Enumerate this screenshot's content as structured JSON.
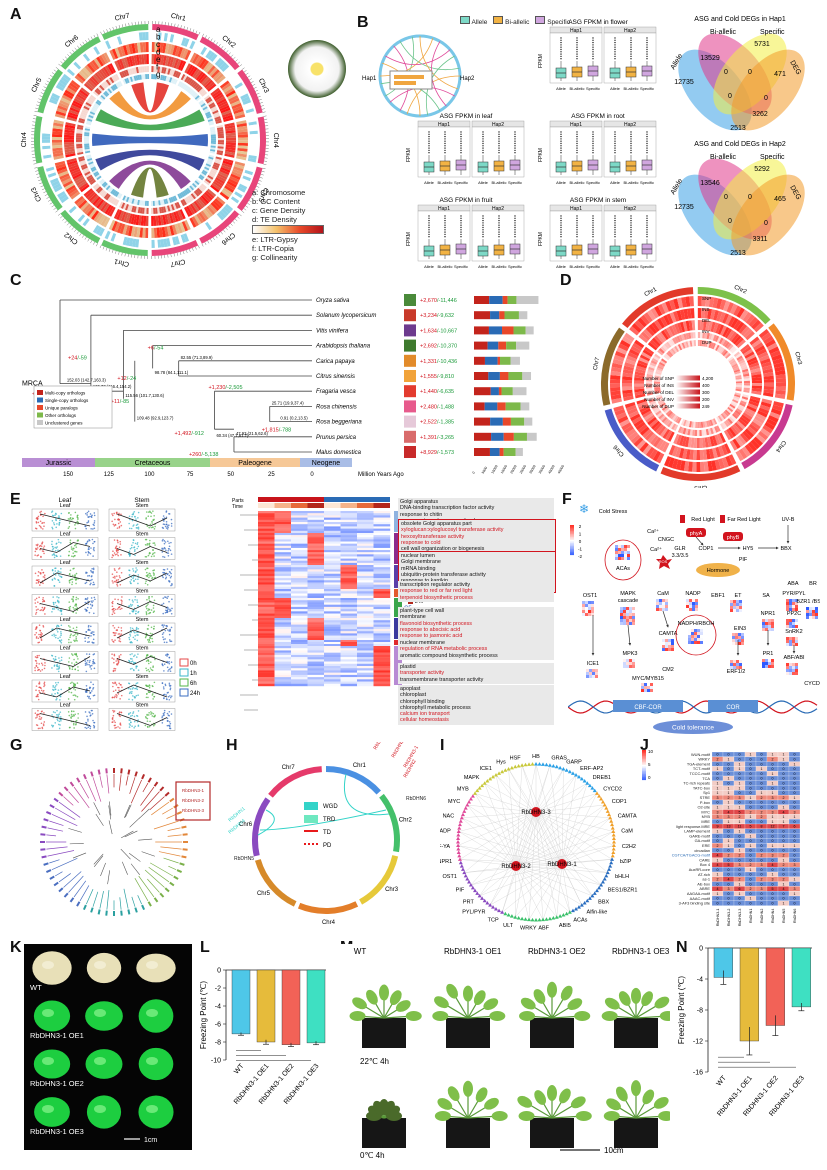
{
  "panels": {
    "A": "A",
    "B": "B",
    "C": "C",
    "D": "D",
    "E": "E",
    "F": "F",
    "G": "G",
    "H": "H",
    "I": "I",
    "J": "J",
    "K": "K",
    "L": "L",
    "M": "M",
    "N": "N"
  },
  "panelA": {
    "chromosomes": [
      "Chr1",
      "Chr2",
      "Chr3",
      "Chr4",
      "Chr5",
      "Chr6",
      "Chr7",
      "Chr1",
      "Chr2",
      "Chr3",
      "Chr4",
      "Chr5",
      "Chr6",
      "Chr7"
    ],
    "track_letters": [
      "a",
      "b",
      "c",
      "d",
      "e",
      "f",
      "g"
    ],
    "legend": [
      "a: Chromosome",
      "b: GC Content",
      "c: Gene Density",
      "d: TE Density",
      "e: LTR-Gypsy",
      "f: LTR-Copia",
      "g: Collinearity"
    ]
  },
  "panelB": {
    "legend": [
      "Allele",
      "Bi-allelic",
      "Specific"
    ],
    "hap_labels": [
      "Hap1",
      "Hap2"
    ],
    "plot_titles": [
      "ASG FPKM in flower",
      "ASG FPKM in leaf",
      "ASG FPKM in root",
      "ASG FPKM in fruit",
      "ASG FPKM in stem"
    ],
    "ylabel": "FPKM",
    "x_categories": [
      "Allele",
      "Bi-allelic",
      "Specific"
    ],
    "venn1": {
      "title": "ASG and Cold DEGs in Hap1",
      "sets": [
        "Allele",
        "Bi-allelic",
        "Specific",
        "DEG"
      ],
      "values": [
        "12735",
        "13529",
        "5731",
        "471",
        "0",
        "0",
        "0",
        "0",
        "3262",
        "2513"
      ]
    },
    "venn2": {
      "title": "ASG and Cold DEGs in Hap2",
      "sets": [
        "Allele",
        "Bi-allelic",
        "Specific",
        "DEG"
      ],
      "values": [
        "12735",
        "13546",
        "5292",
        "465",
        "0",
        "0",
        "0",
        "0",
        "3311",
        "2513"
      ]
    }
  },
  "panelC": {
    "root": "MRCA",
    "species": [
      {
        "name": "Oryza sativa",
        "gain": "+2,670",
        "loss": "/-11,446"
      },
      {
        "name": "Solanum lycopersicum",
        "gain": "+3,234",
        "loss": "/-9,632"
      },
      {
        "name": "Vitis vinifera",
        "gain": "+1,634",
        "loss": "/-10,667"
      },
      {
        "name": "Arabidopsis thaliana",
        "gain": "+2,692",
        "loss": "/-10,370"
      },
      {
        "name": "Carica papaya",
        "gain": "+1,331",
        "loss": "/-10,436"
      },
      {
        "name": "Citrus sinensis",
        "gain": "+1,555",
        "loss": "/-9,810"
      },
      {
        "name": "Fragaria vesca",
        "gain": "+1,440",
        "loss": "/-6,635"
      },
      {
        "name": "Rosa chinensis",
        "gain": "+2,480",
        "loss": "/-1,488"
      },
      {
        "name": "Rosa beggeriana",
        "gain": "+2,522",
        "loss": "/-1,385"
      },
      {
        "name": "Prunus persica",
        "gain": "+1,391",
        "loss": "/-3,265"
      },
      {
        "name": "Malus domestica",
        "gain": "+8,929",
        "loss": "/-1,573"
      }
    ],
    "node_times": [
      "152.03 (142.7,163.3)",
      "136.73 (116.4,154.2)",
      "82.55 (71.3,89.9)",
      "115.56 (101.7,130.6)",
      "98.78 (84.1,111.1)",
      "109.48 (92.9,123.7)",
      "25.71 (19.9,37.4)",
      "0.91 (0.2,13.5)",
      "60.34 (47.7,81.7)",
      "47.93 (21.5,62.6)"
    ],
    "node_changes": [
      "+155/-1,146",
      "+24/-59",
      "+6/-54",
      "+12/-24",
      "+11/-85",
      "+1,230/-2,505",
      "+1,815/-788",
      "+1,492/-912",
      "+260/-5,138"
    ],
    "legend": [
      "Multi-copy orthologs",
      "Single-copy orthologs",
      "Unique paralogs",
      "Other orthologs",
      "Unclustered genes"
    ],
    "legend_colors": [
      "#c3241c",
      "#2a6bb5",
      "#e8482a",
      "#7db94a",
      "#c8c8c8"
    ],
    "eras": [
      "Jurassic",
      "Cretaceous",
      "Paleogene",
      "Neogene"
    ],
    "era_colors": [
      "#b98fd4",
      "#98d38a",
      "#f6c897",
      "#a9bde6"
    ],
    "ticks": [
      "150",
      "125",
      "100",
      "75",
      "50",
      "25",
      "0"
    ],
    "xlabel": "Million Years Ago",
    "bar_ticks": [
      "0",
      "5000",
      "10000",
      "15000",
      "20000",
      "25000",
      "30000",
      "35000",
      "40000",
      "45000"
    ]
  },
  "panelD": {
    "chromosomes": [
      "Chr1",
      "Chr2",
      "Chr3",
      "Chr4",
      "Chr5",
      "Chr6",
      "Chr7"
    ],
    "tracks": [
      "SNP",
      "INS",
      "DEL",
      "INV",
      "DUP"
    ],
    "legend": [
      {
        "label": "Number of SNP",
        "value": "4,200"
      },
      {
        "label": "Number of INS",
        "value": "400"
      },
      {
        "label": "Number of DEL",
        "value": "300"
      },
      {
        "label": "Number of INV",
        "value": "200"
      },
      {
        "label": "Number of DUP",
        "value": "249"
      }
    ]
  },
  "panelE": {
    "facet_headers": [
      "Leaf",
      "Stem"
    ],
    "time_legend": [
      "0h",
      "1h",
      "6h",
      "24h"
    ],
    "heat_legend_title_parts": "Parts",
    "heat_legend_parts": [
      "Leaf",
      "Stem"
    ],
    "heat_legend_time": "Time",
    "heat_legend_times": [
      "0h",
      "1h",
      "6h",
      "24h"
    ],
    "scale_ticks": [
      "2",
      "1",
      "0",
      "-1",
      "-2"
    ],
    "row_headers": [
      "Parts",
      "Time"
    ],
    "clusters": [
      "C1",
      "C2",
      "C3",
      "C4",
      "C5",
      "C6",
      "C7",
      "C8"
    ],
    "cluster_colors": [
      "#8fb3e0",
      "#8b2b8c",
      "#5a3ea8",
      "#e25b2e",
      "#3aa64b",
      "#3a3a9e",
      "#e0292c",
      "#b88ad4"
    ],
    "go_terms": [
      {
        "t": "Golgi apparatus",
        "red": false
      },
      {
        "t": "DNA-binding transcription factor activity",
        "red": false
      },
      {
        "t": "response to chitin",
        "red": false
      },
      {
        "t": "response to endogenous stimulus",
        "red": false
      },
      {
        "t": "obsolete Golgi apparatus part",
        "red": false
      },
      {
        "t": "xyloglucan:xyloglucosyl transferase activity",
        "red": true
      },
      {
        "t": "hexosyltransferase activity",
        "red": true
      },
      {
        "t": "response to cold",
        "red": true
      },
      {
        "t": "cell wall organization or biogenesis",
        "red": false
      },
      {
        "t": "nuclear lumen",
        "red": false
      },
      {
        "t": "Golgi membrane",
        "red": false
      },
      {
        "t": "mRNA binding",
        "red": false
      },
      {
        "t": "ubiquitin-protein transferase activity",
        "red": false
      },
      {
        "t": "response to karrikin",
        "red": false
      },
      {
        "t": "regulation of response to stimulus",
        "red": true
      },
      {
        "t": "transcription regulator activity",
        "red": false
      },
      {
        "t": "response to red or far red light",
        "red": true
      },
      {
        "t": "terpenoid biosynthetic process",
        "red": true
      },
      {
        "t": "plant-type cell wall",
        "red": false
      },
      {
        "t": "membrane",
        "red": false
      },
      {
        "t": "flavonoid biosynthetic process",
        "red": true
      },
      {
        "t": "response to abscisic acid",
        "red": true
      },
      {
        "t": "response to jasmonic acid",
        "red": true
      },
      {
        "t": "nuclear membrane",
        "red": false
      },
      {
        "t": "regulation of RNA metabolic process",
        "red": true
      },
      {
        "t": "aromatic compound biosynthetic process",
        "red": false
      },
      {
        "t": "plastid",
        "red": false
      },
      {
        "t": "transporter activity",
        "red": true
      },
      {
        "t": "transmembrane transporter activity",
        "red": false
      },
      {
        "t": "apoplast",
        "red": false
      },
      {
        "t": "chloroplast",
        "red": false
      },
      {
        "t": "chlorophyll binding",
        "red": false
      },
      {
        "t": "chlorophyll metabolic process",
        "red": false
      },
      {
        "t": "calcium ion transport",
        "red": true
      },
      {
        "t": "cellular homeostasis",
        "red": true
      }
    ]
  },
  "panelF": {
    "nodes": {
      "cold": "Cold Stress",
      "ca1": "Ca²⁺",
      "ca2": "Ca²⁺",
      "cngc": "CNGC",
      "glr": "GLR 3.3/3.5",
      "acas": "ACAs",
      "ros": "ROS",
      "ost1": "OST1",
      "mapk": "MAPK cascade",
      "cam": "CaM",
      "nadp": "NADP",
      "nadph": "NADPH/RBOH",
      "camta": "CAMTA",
      "mpk3": "MPK3",
      "ice1": "ICE1",
      "myc": "MYC/MYB15",
      "cm2": "CM2",
      "red": "Red Light",
      "farred": "Far Red Light",
      "uvb": "UV-B",
      "phya": "phyA",
      "phyb": "phyB",
      "cop1": "COP1",
      "hy5": "HY5",
      "bbx": "BBX",
      "pif": "PIF",
      "hormone": "Hormone",
      "et": "ET",
      "sa": "SA",
      "aba": "ABA",
      "br": "BR",
      "ebf1": "EBF1",
      "ein3": "EIN3",
      "npr1": "NPR1",
      "pyr": "PYR/PYL",
      "pp2c": "PP2C",
      "snrk2": "SnRK2",
      "bzr1": "BZR1 /BSE1",
      "erf12": "ERF1/2",
      "pr1": "PR1",
      "abf": "ABF/ABI",
      "cycd": "CYCD",
      "cbf": "CBF-COR",
      "cor": "COR",
      "tol": "Cold tolerance"
    },
    "scale_ticks": [
      "2",
      "1",
      "0",
      "-1",
      "-2"
    ]
  },
  "panelG": {
    "highlight": [
      "RbDHN3-1",
      "RbDHN3-2",
      "RbDHN3-3"
    ]
  },
  "panelH": {
    "chromosomes": [
      "Chr1",
      "Chr2",
      "Chr3",
      "Chr4",
      "Chr5",
      "Chr6",
      "Chr7"
    ],
    "genes": [
      "RbDHN3-3",
      "RbDHN3-2",
      "RbDHN3-1",
      "RbDHN2",
      "RbDHN1",
      "RbDHN4",
      "RbDHN5",
      "RbDHN6"
    ],
    "legend": [
      "WGD",
      "TRD",
      "TD",
      "PD"
    ],
    "legend_colors": [
      "#33d3c8",
      "#6ee8c0",
      "#e8191b",
      "#e8191b"
    ]
  },
  "panelI": {
    "hubs": [
      "RbDHN3-3",
      "RbDHN3-2",
      "RbDHN3-1"
    ],
    "partners": [
      "HB",
      "GRAS",
      "GARP",
      "ERF-AP2",
      "DREB1",
      "CYCD2",
      "COP1",
      "CAMTA",
      "CaM",
      "C2H2",
      "bZIP",
      "bHLH",
      "BES1/BZR1",
      "BBX",
      "Alfin-like",
      "ACAs",
      "ABI5",
      "ABF",
      "WRKY",
      "ULT",
      "TCP",
      "PYL/PYR",
      "PRT",
      "PIF",
      "OST1",
      "NPR1",
      "NF-YA",
      "NADP",
      "NAC",
      "MYC",
      "MYB",
      "MAPK",
      "ICE1",
      "Hys",
      "HSF"
    ]
  },
  "panelJ": {
    "rows": [
      "WUN-motif",
      "WRKY",
      "TGA-element",
      "TCT-motif",
      "TCCC-motif",
      "TCA",
      "TC-rich repeats",
      "TATC-box",
      "Sp1",
      "STRE",
      "P-box",
      "O2-site",
      "MYC",
      "MYB",
      "MRE",
      "light response.MRE",
      "LAMP-element",
      "GARE-motif",
      "GA-motif",
      "ERE",
      "circadian",
      "CGTCA/TGACG-motif",
      "CARE",
      "Box 4",
      "AuxRR-core",
      "AT-rich",
      "as-1",
      "AE-box",
      "ABRE",
      "AAGAA-motif",
      "AAAC-motif",
      "3-AF3 binding site"
    ],
    "cols": [
      "RbDHN3-1",
      "RbDHN3-2",
      "RbDHN3-3",
      "RbDHN1",
      "RbDHN2",
      "RbDHN4",
      "RbDHN5",
      "RbDHN6"
    ],
    "values": [
      [
        0,
        0,
        0,
        1,
        0,
        1,
        1,
        0
      ],
      [
        2,
        1,
        0,
        0,
        0,
        2,
        1,
        0
      ],
      [
        0,
        0,
        1,
        0,
        0,
        0,
        0,
        1
      ],
      [
        1,
        0,
        1,
        0,
        1,
        0,
        0,
        0
      ],
      [
        0,
        0,
        0,
        0,
        0,
        1,
        0,
        0
      ],
      [
        0,
        1,
        0,
        0,
        0,
        0,
        0,
        0
      ],
      [
        1,
        0,
        1,
        0,
        0,
        1,
        0,
        0
      ],
      [
        1,
        1,
        1,
        0,
        0,
        0,
        0,
        0
      ],
      [
        1,
        1,
        0,
        0,
        1,
        1,
        0,
        0
      ],
      [
        3,
        2,
        3,
        1,
        2,
        3,
        2,
        1
      ],
      [
        0,
        1,
        0,
        0,
        0,
        0,
        0,
        0
      ],
      [
        1,
        1,
        1,
        0,
        0,
        0,
        1,
        0
      ],
      [
        3,
        4,
        5,
        2,
        2,
        3,
        4,
        3
      ],
      [
        3,
        3,
        2,
        1,
        2,
        1,
        1,
        1
      ],
      [
        0,
        1,
        1,
        0,
        0,
        1,
        1,
        0
      ],
      [
        9,
        13,
        11,
        5,
        8,
        12,
        7,
        6
      ],
      [
        1,
        0,
        1,
        0,
        0,
        0,
        0,
        0
      ],
      [
        0,
        0,
        0,
        1,
        0,
        0,
        0,
        0
      ],
      [
        0,
        1,
        0,
        0,
        0,
        0,
        0,
        0
      ],
      [
        2,
        1,
        0,
        1,
        0,
        1,
        1,
        1
      ],
      [
        0,
        0,
        1,
        0,
        0,
        0,
        0,
        0
      ],
      [
        4,
        2,
        2,
        0,
        2,
        3,
        2,
        0
      ],
      [
        1,
        0,
        0,
        0,
        0,
        0,
        1,
        0
      ],
      [
        4,
        5,
        3,
        2,
        3,
        4,
        2,
        3
      ],
      [
        0,
        0,
        0,
        1,
        0,
        0,
        0,
        0
      ],
      [
        1,
        0,
        0,
        0,
        0,
        1,
        0,
        0
      ],
      [
        2,
        4,
        2,
        0,
        2,
        3,
        2,
        1
      ],
      [
        0,
        0,
        1,
        0,
        0,
        0,
        1,
        0
      ],
      [
        4,
        3,
        6,
        2,
        3,
        5,
        4,
        3
      ],
      [
        1,
        0,
        1,
        0,
        0,
        0,
        0,
        1
      ],
      [
        0,
        0,
        0,
        1,
        0,
        0,
        0,
        0
      ],
      [
        0,
        0,
        0,
        0,
        0,
        0,
        1,
        0
      ]
    ],
    "scale_ticks": [
      "10",
      "5",
      "0"
    ]
  },
  "panelK": {
    "rows": [
      "WT",
      "RbDHN3-1 OE1",
      "RbDHN3-1 OE2",
      "RbDHN3-1 OE3"
    ],
    "scale": "1cm"
  },
  "panelL": {
    "ylabel": "Freezing Point (℃)",
    "categories": [
      "WT",
      "RbDHN3-1 OE1",
      "RbDHN3-1 OE2",
      "RbDHN3-1 OE3"
    ],
    "values": [
      -7.1,
      -8.0,
      -8.3,
      -8.1
    ],
    "errors": [
      0.15,
      0.25,
      0.2,
      0.2
    ],
    "colors": [
      "#4ec7e8",
      "#e6bb3b",
      "#f26257",
      "#3ee0c2"
    ],
    "yticks": [
      "0",
      "-2",
      "-4",
      "-6",
      "-8",
      "-10"
    ],
    "ylim": [
      -10,
      0
    ]
  },
  "panelM": {
    "cols": [
      "WT",
      "RbDHN3-1 OE1",
      "RbDHN3-1 OE2",
      "RbDHN3-1 OE3"
    ],
    "conditions": [
      "22℃ 4h",
      "0℃ 4h"
    ],
    "scale": "10cm"
  },
  "panelN": {
    "ylabel": "Freezing Point (℃)",
    "categories": [
      "WT",
      "RbDHN3-1 OE1",
      "RbDHN3-1 OE2",
      "RbDHN3-1 OE3"
    ],
    "values": [
      -3.8,
      -12.0,
      -10.0,
      -7.6
    ],
    "errors": [
      0.9,
      1.8,
      1.3,
      0.5
    ],
    "colors": [
      "#4ec7e8",
      "#e6bb3b",
      "#f26257",
      "#3ee0c2"
    ],
    "yticks": [
      "0",
      "-4",
      "-8",
      "-12",
      "-16"
    ],
    "ylim": [
      -16,
      0
    ]
  }
}
